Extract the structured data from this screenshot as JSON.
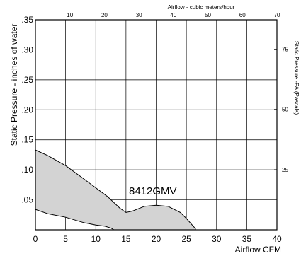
{
  "chart_data": {
    "type": "area",
    "bottom_axis": {
      "label": "Airflow CFM",
      "range": [
        0,
        40
      ],
      "ticks": [
        0,
        5,
        10,
        15,
        20,
        25,
        30,
        35,
        40
      ],
      "tick_labels": [
        "0",
        "5",
        "10",
        "15",
        "20",
        "25",
        "30",
        "35",
        "40"
      ]
    },
    "left_axis": {
      "label": "Static Pressure - inches of water",
      "range": [
        0,
        0.35
      ],
      "ticks": [
        0.05,
        0.1,
        0.15,
        0.2,
        0.25,
        0.3,
        0.35
      ],
      "tick_labels": [
        ".05",
        ".10",
        ".15",
        ".20",
        ".25",
        ".30",
        ".35"
      ]
    },
    "top_axis": {
      "label": "Airflow - cubic meters/hour",
      "unit_range": [
        0,
        70
      ],
      "ticks": [
        10,
        20,
        30,
        40,
        50,
        60,
        70
      ],
      "tick_labels": [
        "10",
        "20",
        "30",
        "40",
        "50",
        "60",
        "70"
      ]
    },
    "right_axis": {
      "label": "Static Pressure -PA (Pascals)",
      "ticks": [
        25,
        50,
        75
      ],
      "tick_labels": [
        "25",
        "50",
        "75"
      ]
    },
    "grid": true,
    "series": [
      {
        "name": "8412GMV",
        "upper_curve": {
          "x": [
            0,
            2,
            5,
            8,
            10,
            12,
            14,
            15,
            16,
            18,
            20,
            22,
            24,
            25,
            26.5
          ],
          "y": [
            0.133,
            0.124,
            0.107,
            0.085,
            0.07,
            0.055,
            0.036,
            0.029,
            0.031,
            0.039,
            0.041,
            0.039,
            0.029,
            0.019,
            0.002
          ]
        },
        "lower_curve": {
          "x": [
            0,
            2,
            5,
            8,
            10,
            11.5,
            12.5,
            13,
            26.5
          ],
          "y": [
            0.034,
            0.027,
            0.021,
            0.012,
            0.008,
            0.006,
            0.003,
            0.0,
            0.0
          ]
        },
        "fill": "#d3d3d3"
      }
    ],
    "annotation": "8412GMV"
  }
}
